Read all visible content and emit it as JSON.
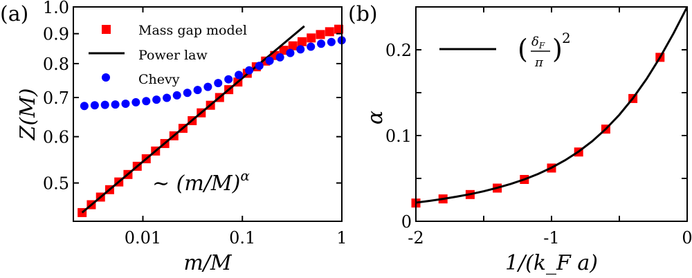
{
  "chart_data": [
    {
      "panel_label": "(a)",
      "type": "scatter",
      "xlabel": "m/M",
      "ylabel": "Z(M)",
      "xscale": "log",
      "yscale": "log",
      "xlim": [
        0.002,
        1
      ],
      "ylim": [
        0.43,
        1.0
      ],
      "xticks": [
        {
          "v": 0.01,
          "label": "0.01"
        },
        {
          "v": 0.1,
          "label": "0.1"
        },
        {
          "v": 1,
          "label": "1"
        }
      ],
      "yticks": [
        {
          "v": 0.5,
          "label": "0.5"
        },
        {
          "v": 0.6,
          "label": "0.6"
        },
        {
          "v": 0.7,
          "label": "0.7"
        },
        {
          "v": 0.8,
          "label": "0.8"
        },
        {
          "v": 0.9,
          "label": "0.9"
        },
        {
          "v": 1.0,
          "label": "1.0"
        }
      ],
      "legend_position": "top-left",
      "annotation": "∼ (m/M)",
      "annotation_superscript": "α",
      "series": [
        {
          "name": "Mass gap model",
          "kind": "square",
          "color": "#ff0000",
          "x": [
            0.00245,
            0.00303,
            0.00375,
            0.00463,
            0.00573,
            0.00708,
            0.00877,
            0.0108,
            0.0134,
            0.0166,
            0.0205,
            0.0253,
            0.0313,
            0.0386,
            0.0478,
            0.059,
            0.073,
            0.0902,
            0.112,
            0.138,
            0.171,
            0.211,
            0.261,
            0.322,
            0.398,
            0.492,
            0.609,
            0.753,
            0.931
          ],
          "y": [
            0.445,
            0.459,
            0.473,
            0.487,
            0.502,
            0.517,
            0.534,
            0.55,
            0.567,
            0.584,
            0.602,
            0.62,
            0.639,
            0.659,
            0.679,
            0.7,
            0.722,
            0.744,
            0.77,
            0.79,
            0.808,
            0.826,
            0.843,
            0.858,
            0.872,
            0.885,
            0.897,
            0.907,
            0.916
          ]
        },
        {
          "name": "Power law",
          "kind": "line",
          "color": "#000000",
          "x": [
            0.00245,
            0.42
          ],
          "y": [
            0.445,
            0.927
          ]
        },
        {
          "name": "Chevy",
          "kind": "circle",
          "color": "#0000ff",
          "x": [
            0.00258,
            0.00328,
            0.00416,
            0.00528,
            0.0067,
            0.0085,
            0.0108,
            0.0137,
            0.0174,
            0.022,
            0.028,
            0.0355,
            0.045,
            0.0571,
            0.0725,
            0.092,
            0.117,
            0.148,
            0.188,
            0.239,
            0.303,
            0.384,
            0.488,
            0.619,
            0.785,
            0.996
          ],
          "y": [
            0.677,
            0.679,
            0.68,
            0.681,
            0.683,
            0.687,
            0.69,
            0.694,
            0.699,
            0.706,
            0.713,
            0.721,
            0.73,
            0.741,
            0.752,
            0.765,
            0.779,
            0.793,
            0.809,
            0.82,
            0.834,
            0.846,
            0.855,
            0.865,
            0.871,
            0.877
          ]
        }
      ]
    },
    {
      "panel_label": "(b)",
      "type": "scatter",
      "xlabel": "1/(k_F a)",
      "ylabel": "α",
      "xlim": [
        -2,
        0
      ],
      "ylim": [
        0,
        0.25
      ],
      "xticks": [
        {
          "v": -2,
          "label": "-2"
        },
        {
          "v": -1.5,
          "label": ""
        },
        {
          "v": -1,
          "label": "-1"
        },
        {
          "v": -0.5,
          "label": ""
        },
        {
          "v": 0,
          "label": "0"
        }
      ],
      "yticks": [
        {
          "v": 0,
          "label": "0"
        },
        {
          "v": 0.05,
          "label": ""
        },
        {
          "v": 0.1,
          "label": "0.1"
        },
        {
          "v": 0.15,
          "label": ""
        },
        {
          "v": 0.2,
          "label": "0.2"
        }
      ],
      "legend_position": "top-left",
      "legend_formula": {
        "numerator": "δ",
        "numerator_sub": "F",
        "denominator": "π",
        "power": "2"
      },
      "series": [
        {
          "kind": "square",
          "color": "#ff0000",
          "x": [
            -2.0,
            -1.8,
            -1.6,
            -1.4,
            -1.2,
            -1.0,
            -0.8,
            -0.6,
            -0.4,
            -0.2
          ],
          "y": [
            0.0213,
            0.0261,
            0.0312,
            0.0387,
            0.0488,
            0.0621,
            0.0808,
            0.1075,
            0.1432,
            0.1912
          ]
        },
        {
          "kind": "line",
          "color": "#000000",
          "x": [
            -2.0,
            -1.9,
            -1.8,
            -1.7,
            -1.6,
            -1.5,
            -1.4,
            -1.3,
            -1.2,
            -1.1,
            -1.0,
            -0.9,
            -0.8,
            -0.7,
            -0.6,
            -0.5,
            -0.4,
            -0.3,
            -0.2,
            -0.1,
            0
          ],
          "y": [
            0.0218,
            0.0238,
            0.0261,
            0.0287,
            0.0316,
            0.035,
            0.039,
            0.0436,
            0.0489,
            0.0552,
            0.0625,
            0.0712,
            0.0814,
            0.0934,
            0.1076,
            0.1242,
            0.1435,
            0.1658,
            0.1911,
            0.2193,
            0.25
          ]
        }
      ]
    }
  ]
}
